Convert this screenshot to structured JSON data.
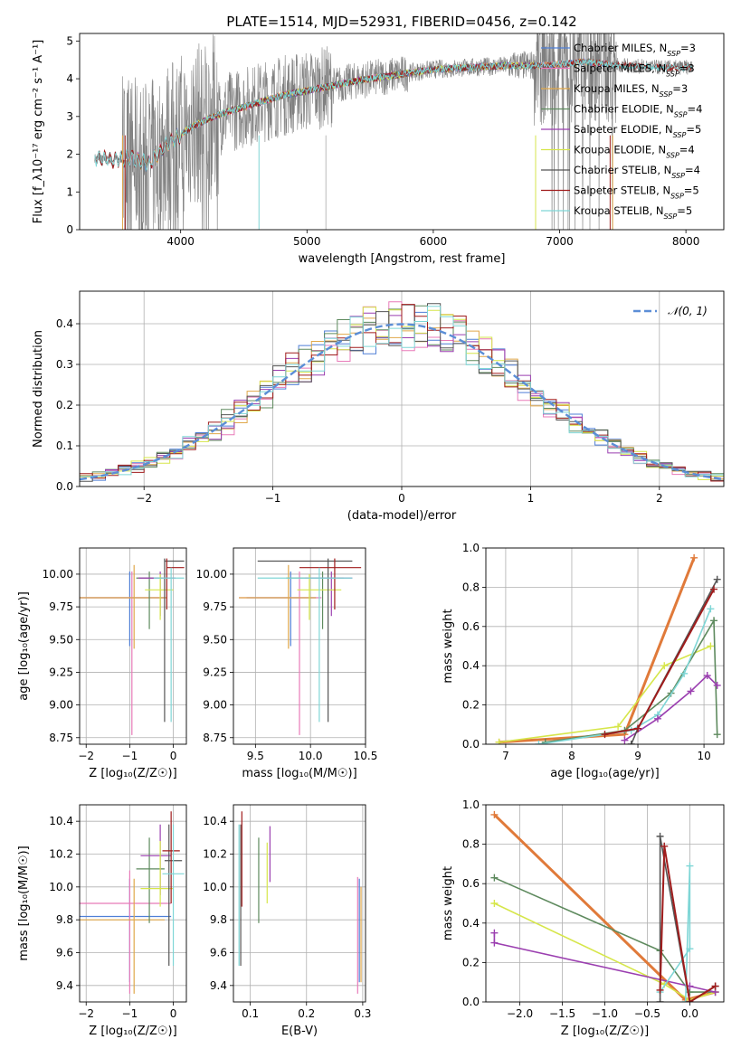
{
  "figure_title": "PLATE=1514, MJD=52931, FIBERID=0456, z=0.142",
  "colors": {
    "Chabrier MILES": "#4f7fd6",
    "Salpeter MILES": "#e87ab8",
    "Kroupa MILES": "#e0a84a",
    "Chabrier ELODIE": "#5e8a5e",
    "Salpeter ELODIE": "#9b3fb0",
    "Kroupa ELODIE": "#d6e64a",
    "Chabrier STELIB": "#555555",
    "Salpeter STELIB": "#a01c1c",
    "Kroupa STELIB": "#7fd6d6",
    "data": "#808080",
    "gauss": "#5b8ed6",
    "weights_orange": "#e07a3a"
  },
  "chart_data": [
    {
      "id": "spectrum",
      "type": "line",
      "xlabel": "wavelength [Angstrom, rest frame]",
      "ylabel": "Flux [f_λ10⁻¹⁷ erg cm⁻² s⁻¹ A⁻¹]",
      "xlim": [
        3200,
        8300
      ],
      "ylim": [
        0,
        5.2
      ],
      "xticks": [
        4000,
        5000,
        6000,
        7000,
        8000
      ],
      "yticks": [
        0,
        1,
        2,
        3,
        4,
        5
      ],
      "legend_position": "right",
      "legend": [
        {
          "label": "Chabrier MILES, N",
          "sub": "SSP",
          "suffix": "=3",
          "color_key": "Chabrier MILES"
        },
        {
          "label": "Salpeter MILES, N",
          "sub": "SSP",
          "suffix": "=3",
          "color_key": "Salpeter MILES"
        },
        {
          "label": "Kroupa MILES, N",
          "sub": "SSP",
          "suffix": "=3",
          "color_key": "Kroupa MILES"
        },
        {
          "label": "Chabrier ELODIE, N",
          "sub": "SSP",
          "suffix": "=4",
          "color_key": "Chabrier ELODIE"
        },
        {
          "label": "Salpeter ELODIE, N",
          "sub": "SSP",
          "suffix": "=5",
          "color_key": "Salpeter ELODIE"
        },
        {
          "label": "Kroupa ELODIE, N",
          "sub": "SSP",
          "suffix": "=4",
          "color_key": "Kroupa ELODIE"
        },
        {
          "label": "Chabrier STELIB, N",
          "sub": "SSP",
          "suffix": "=4",
          "color_key": "Chabrier STELIB"
        },
        {
          "label": "Salpeter STELIB, N",
          "sub": "SSP",
          "suffix": "=5",
          "color_key": "Salpeter STELIB"
        },
        {
          "label": "Kroupa STELIB, N",
          "sub": "SSP",
          "suffix": "=5",
          "color_key": "Kroupa STELIB"
        }
      ],
      "continuum": {
        "x": [
          3320,
          3450,
          3600,
          3750,
          3900,
          4100,
          4300,
          4500,
          4800,
          5100,
          5400,
          5700,
          6000,
          6300,
          6600,
          6900,
          7200,
          7500,
          7800,
          8050
        ],
        "y": [
          1.9,
          1.85,
          1.9,
          1.75,
          2.3,
          2.75,
          3.05,
          3.25,
          3.55,
          3.75,
          3.95,
          4.1,
          4.25,
          4.3,
          4.35,
          4.35,
          4.45,
          4.35,
          4.3,
          4.3
        ]
      }
    },
    {
      "id": "residuals",
      "type": "histogram",
      "xlabel": "(data-model)/error",
      "ylabel": "Normed distribution",
      "xlim": [
        -2.5,
        2.5
      ],
      "ylim": [
        0,
        0.48
      ],
      "xticks": [
        -2,
        -1,
        0,
        1,
        2
      ],
      "xtick_labels": [
        "−2",
        "−1",
        "0",
        "1",
        "2"
      ],
      "yticks": [
        0.0,
        0.1,
        0.2,
        0.3,
        0.4
      ],
      "ytick_labels": [
        "0.0",
        "0.1",
        "0.2",
        "0.3",
        "0.4"
      ],
      "grid": true,
      "legend_label": "𝒩(0, 1)",
      "legend_position": "top-right",
      "bin_width": 0.1
    },
    {
      "id": "z_age",
      "type": "errorbar",
      "xlabel": "Z [log₁₀(Z/Z☉)]",
      "ylabel": "age  [log₁₀(age/yr)]",
      "xlim": [
        -2.15,
        0.3
      ],
      "ylim": [
        8.7,
        10.2
      ],
      "xticks": [
        -2,
        -1,
        0
      ],
      "xtick_labels": [
        "−2",
        "−1",
        "0"
      ],
      "yticks": [
        8.75,
        9.0,
        9.25,
        9.5,
        9.75,
        10.0
      ],
      "ytick_labels": [
        "8.75",
        "9.00",
        "9.25",
        "9.50",
        "9.75",
        "10.00"
      ],
      "grid": true,
      "points": [
        {
          "c": "Chabrier MILES",
          "x": -1.0,
          "xe": [
            -2.15,
            -0.2
          ],
          "y": 9.82,
          "ye": [
            9.45,
            10.02
          ]
        },
        {
          "c": "Salpeter MILES",
          "x": -0.95,
          "xe": [
            -2.15,
            -0.15
          ],
          "y": 9.82,
          "ye": [
            8.77,
            10.02
          ]
        },
        {
          "c": "Kroupa MILES",
          "x": -0.9,
          "xe": [
            -2.15,
            -0.15
          ],
          "y": 9.82,
          "ye": [
            9.43,
            10.07
          ]
        },
        {
          "c": "Chabrier ELODIE",
          "x": -0.55,
          "xe": [
            -0.85,
            -0.25
          ],
          "y": 9.97,
          "ye": [
            9.58,
            10.02
          ]
        },
        {
          "c": "Salpeter ELODIE",
          "x": -0.3,
          "xe": [
            -0.8,
            0.05
          ],
          "y": 9.97,
          "ye": [
            9.68,
            10.02
          ]
        },
        {
          "c": "Kroupa ELODIE",
          "x": -0.3,
          "xe": [
            -0.65,
            0.0
          ],
          "y": 9.88,
          "ye": [
            9.65,
            10.0
          ]
        },
        {
          "c": "Chabrier STELIB",
          "x": -0.2,
          "xe": [
            -0.2,
            0.25
          ],
          "y": 10.1,
          "ye": [
            8.87,
            10.12
          ]
        },
        {
          "c": "Salpeter STELIB",
          "x": -0.15,
          "xe": [
            -0.15,
            0.25
          ],
          "y": 10.05,
          "ye": [
            9.73,
            10.12
          ]
        },
        {
          "c": "Kroupa STELIB",
          "x": -0.05,
          "xe": [
            -0.45,
            0.25
          ],
          "y": 9.97,
          "ye": [
            8.87,
            10.05
          ]
        }
      ]
    },
    {
      "id": "mass_age",
      "type": "errorbar",
      "xlabel": "mass [log₁₀(M/M☉)]",
      "ylabel": "",
      "xlim": [
        9.3,
        10.5
      ],
      "ylim": [
        8.7,
        10.2
      ],
      "xticks": [
        9.5,
        10.0,
        10.5
      ],
      "xtick_labels": [
        "9.5",
        "10.0",
        "10.5"
      ],
      "yticks": [
        8.75,
        9.0,
        9.25,
        9.5,
        9.75,
        10.0
      ],
      "ytick_labels": [
        "8.75",
        "9.00",
        "9.25",
        "9.50",
        "9.75",
        "10.00"
      ],
      "grid": true,
      "points": [
        {
          "c": "Chabrier MILES",
          "x": 9.82,
          "xe": [
            9.42,
            10.05
          ],
          "y": 9.82,
          "ye": [
            9.45,
            10.02
          ]
        },
        {
          "c": "Salpeter MILES",
          "x": 9.9,
          "xe": [
            9.35,
            10.1
          ],
          "y": 9.82,
          "ye": [
            8.77,
            10.02
          ]
        },
        {
          "c": "Kroupa MILES",
          "x": 9.8,
          "xe": [
            9.35,
            10.05
          ],
          "y": 9.82,
          "ye": [
            9.43,
            10.07
          ]
        },
        {
          "c": "Chabrier ELODIE",
          "x": 10.11,
          "xe": [
            9.78,
            10.3
          ],
          "y": 9.97,
          "ye": [
            9.58,
            10.02
          ]
        },
        {
          "c": "Salpeter ELODIE",
          "x": 10.19,
          "xe": [
            9.95,
            10.38
          ],
          "y": 9.97,
          "ye": [
            9.68,
            10.02
          ]
        },
        {
          "c": "Kroupa ELODIE",
          "x": 9.99,
          "xe": [
            9.88,
            10.28
          ],
          "y": 9.88,
          "ye": [
            9.65,
            10.0
          ]
        },
        {
          "c": "Chabrier STELIB",
          "x": 10.16,
          "xe": [
            9.52,
            10.38
          ],
          "y": 10.1,
          "ye": [
            8.87,
            10.12
          ]
        },
        {
          "c": "Salpeter STELIB",
          "x": 10.22,
          "xe": [
            9.9,
            10.46
          ],
          "y": 10.05,
          "ye": [
            9.73,
            10.12
          ]
        },
        {
          "c": "Kroupa STELIB",
          "x": 10.08,
          "xe": [
            9.52,
            10.38
          ],
          "y": 9.97,
          "ye": [
            8.87,
            10.05
          ]
        }
      ]
    },
    {
      "id": "age_weight",
      "type": "line",
      "xlabel": "age  [log₁₀(age/yr)]",
      "ylabel": "mass weight",
      "xlim": [
        6.7,
        10.3
      ],
      "ylim": [
        0,
        1
      ],
      "xticks": [
        7,
        8,
        9,
        10
      ],
      "yticks": [
        0.0,
        0.2,
        0.4,
        0.6,
        0.8,
        1.0
      ],
      "ytick_labels": [
        "0.0",
        "0.2",
        "0.4",
        "0.6",
        "0.8",
        "1.0"
      ],
      "grid": true,
      "series": [
        {
          "c": "weights_orange",
          "x": [
            6.9,
            8.8,
            9.85
          ],
          "y": [
            0.01,
            0.05,
            0.95
          ],
          "w": 3
        },
        {
          "c": "Kroupa ELODIE",
          "x": [
            6.9,
            8.7,
            9.4,
            10.1
          ],
          "y": [
            0.01,
            0.09,
            0.4,
            0.5
          ]
        },
        {
          "c": "Chabrier ELODIE",
          "x": [
            7.6,
            8.8,
            9.5,
            10.15,
            10.2
          ],
          "y": [
            0.01,
            0.07,
            0.26,
            0.63,
            0.05
          ]
        },
        {
          "c": "Kroupa STELIB",
          "x": [
            7.5,
            8.9,
            9.3,
            9.7,
            10.1
          ],
          "y": [
            0.0,
            0.07,
            0.15,
            0.36,
            0.69
          ]
        },
        {
          "c": "Salpeter ELODIE",
          "x": [
            8.8,
            9.3,
            9.8,
            10.05,
            10.2
          ],
          "y": [
            0.02,
            0.13,
            0.27,
            0.35,
            0.3
          ]
        },
        {
          "c": "Chabrier STELIB",
          "x": [
            8.9,
            9.0,
            10.2
          ],
          "y": [
            0.0,
            0.08,
            0.84
          ]
        },
        {
          "c": "Salpeter STELIB",
          "x": [
            8.5,
            9.0,
            10.15
          ],
          "y": [
            0.05,
            0.08,
            0.79
          ],
          "w": 2
        }
      ]
    },
    {
      "id": "z_mass",
      "type": "errorbar",
      "xlabel": "Z [log₁₀(Z/Z☉)]",
      "ylabel": "mass [log₁₀(M/M☉)]",
      "xlim": [
        -2.15,
        0.3
      ],
      "ylim": [
        9.3,
        10.5
      ],
      "xticks": [
        -2,
        -1,
        0
      ],
      "xtick_labels": [
        "−2",
        "−1",
        "0"
      ],
      "yticks": [
        9.4,
        9.6,
        9.8,
        10.0,
        10.2,
        10.4
      ],
      "ytick_labels": [
        "9.4",
        "9.6",
        "9.8",
        "10.0",
        "10.2",
        "10.4"
      ],
      "grid": true,
      "points": [
        {
          "c": "Chabrier MILES",
          "x": -1.0,
          "xe": [
            -2.15,
            -0.05
          ],
          "y": 9.82,
          "ye": [
            9.42,
            10.05
          ]
        },
        {
          "c": "Salpeter MILES",
          "x": -1.0,
          "xe": [
            -2.15,
            -0.05
          ],
          "y": 9.9,
          "ye": [
            9.35,
            10.1
          ]
        },
        {
          "c": "Kroupa MILES",
          "x": -0.9,
          "xe": [
            -2.15,
            -0.2
          ],
          "y": 9.8,
          "ye": [
            9.35,
            10.05
          ]
        },
        {
          "c": "Chabrier ELODIE",
          "x": -0.55,
          "xe": [
            -0.85,
            -0.2
          ],
          "y": 10.11,
          "ye": [
            9.78,
            10.3
          ]
        },
        {
          "c": "Salpeter ELODIE",
          "x": -0.3,
          "xe": [
            -0.75,
            -0.05
          ],
          "y": 10.19,
          "ye": [
            9.95,
            10.38
          ]
        },
        {
          "c": "Kroupa ELODIE",
          "x": -0.3,
          "xe": [
            -0.75,
            0.0
          ],
          "y": 9.99,
          "ye": [
            9.88,
            10.28
          ]
        },
        {
          "c": "Chabrier STELIB",
          "x": -0.1,
          "xe": [
            -0.2,
            0.2
          ],
          "y": 10.16,
          "ye": [
            9.52,
            10.38
          ]
        },
        {
          "c": "Salpeter STELIB",
          "x": -0.05,
          "xe": [
            -0.25,
            0.15
          ],
          "y": 10.22,
          "ye": [
            9.9,
            10.46
          ]
        },
        {
          "c": "Kroupa STELIB",
          "x": 0.0,
          "xe": [
            -0.25,
            0.25
          ],
          "y": 10.08,
          "ye": [
            9.52,
            10.38
          ]
        }
      ]
    },
    {
      "id": "ebv_mass",
      "type": "errorbar",
      "xlabel": "E(B-V)",
      "ylabel": "",
      "xlim": [
        0.07,
        0.305
      ],
      "ylim": [
        9.3,
        10.5
      ],
      "xticks": [
        0.1,
        0.2,
        0.3
      ],
      "xtick_labels": [
        "0.1",
        "0.2",
        "0.3"
      ],
      "yticks": [
        9.4,
        9.6,
        9.8,
        10.0,
        10.2,
        10.4
      ],
      "ytick_labels": [
        "9.4",
        "9.6",
        "9.8",
        "10.0",
        "10.2",
        "10.4"
      ],
      "grid": true,
      "points": [
        {
          "c": "Chabrier MILES",
          "x": 0.294,
          "xe": [
            0.294,
            0.294
          ],
          "y": 9.82,
          "ye": [
            9.42,
            10.05
          ]
        },
        {
          "c": "Salpeter MILES",
          "x": 0.291,
          "xe": [
            0.291,
            0.291
          ],
          "y": 9.9,
          "ye": [
            9.35,
            10.06
          ]
        },
        {
          "c": "Kroupa MILES",
          "x": 0.297,
          "xe": [
            0.297,
            0.297
          ],
          "y": 9.8,
          "ye": [
            9.42,
            10.0
          ]
        },
        {
          "c": "Chabrier ELODIE",
          "x": 0.115,
          "xe": [
            0.115,
            0.115
          ],
          "y": 10.11,
          "ye": [
            9.78,
            10.3
          ]
        },
        {
          "c": "Salpeter ELODIE",
          "x": 0.135,
          "xe": [
            0.135,
            0.135
          ],
          "y": 10.19,
          "ye": [
            10.03,
            10.37
          ]
        },
        {
          "c": "Kroupa ELODIE",
          "x": 0.13,
          "xe": [
            0.13,
            0.13
          ],
          "y": 9.99,
          "ye": [
            9.9,
            10.27
          ]
        },
        {
          "c": "Chabrier STELIB",
          "x": 0.083,
          "xe": [
            0.083,
            0.083
          ],
          "y": 10.16,
          "ye": [
            9.52,
            10.38
          ]
        },
        {
          "c": "Salpeter STELIB",
          "x": 0.085,
          "xe": [
            0.085,
            0.085
          ],
          "y": 10.22,
          "ye": [
            9.88,
            10.46
          ]
        },
        {
          "c": "Kroupa STELIB",
          "x": 0.08,
          "xe": [
            0.08,
            0.08
          ],
          "y": 10.08,
          "ye": [
            9.52,
            10.38
          ]
        }
      ]
    },
    {
      "id": "z_weight",
      "type": "line",
      "xlabel": "Z [log₁₀(Z/Z☉)]",
      "ylabel": "mass weight",
      "xlim": [
        -2.4,
        0.4
      ],
      "ylim": [
        0,
        1
      ],
      "xticks": [
        -2.0,
        -1.5,
        -1.0,
        -0.5,
        0.0
      ],
      "xtick_labels": [
        "−2.0",
        "−1.5",
        "−1.0",
        "−0.5",
        "0.0"
      ],
      "yticks": [
        0.0,
        0.2,
        0.4,
        0.6,
        0.8,
        1.0
      ],
      "ytick_labels": [
        "0.0",
        "0.2",
        "0.4",
        "0.6",
        "0.8",
        "1.0"
      ],
      "grid": true,
      "series": [
        {
          "c": "weights_orange",
          "x": [
            -2.3,
            -0.05,
            0.3
          ],
          "y": [
            0.95,
            0.01,
            0.05
          ],
          "w": 3
        },
        {
          "c": "Chabrier ELODIE",
          "x": [
            -2.3,
            -0.35,
            0.0,
            0.3
          ],
          "y": [
            0.63,
            0.26,
            0.05,
            0.05
          ]
        },
        {
          "c": "Kroupa ELODIE",
          "x": [
            -2.3,
            -0.3,
            0.0,
            0.3
          ],
          "y": [
            0.5,
            0.09,
            0.01,
            0.05
          ]
        },
        {
          "c": "Salpeter ELODIE",
          "x": [
            -2.3,
            -2.3,
            0.0,
            0.3
          ],
          "y": [
            0.35,
            0.3,
            0.08,
            0.05
          ]
        },
        {
          "c": "Kroupa STELIB",
          "x": [
            -0.35,
            0.0,
            0.0,
            -0.05
          ],
          "y": [
            0.05,
            0.27,
            0.69,
            0.0
          ]
        },
        {
          "c": "Chabrier STELIB",
          "x": [
            -0.35,
            -0.35,
            0.0,
            0.3
          ],
          "y": [
            0.0,
            0.84,
            0.0,
            0.08
          ]
        },
        {
          "c": "Salpeter STELIB",
          "x": [
            -0.35,
            -0.3,
            0.0,
            0.3
          ],
          "y": [
            0.06,
            0.79,
            0.0,
            0.08
          ],
          "w": 2
        }
      ]
    }
  ]
}
